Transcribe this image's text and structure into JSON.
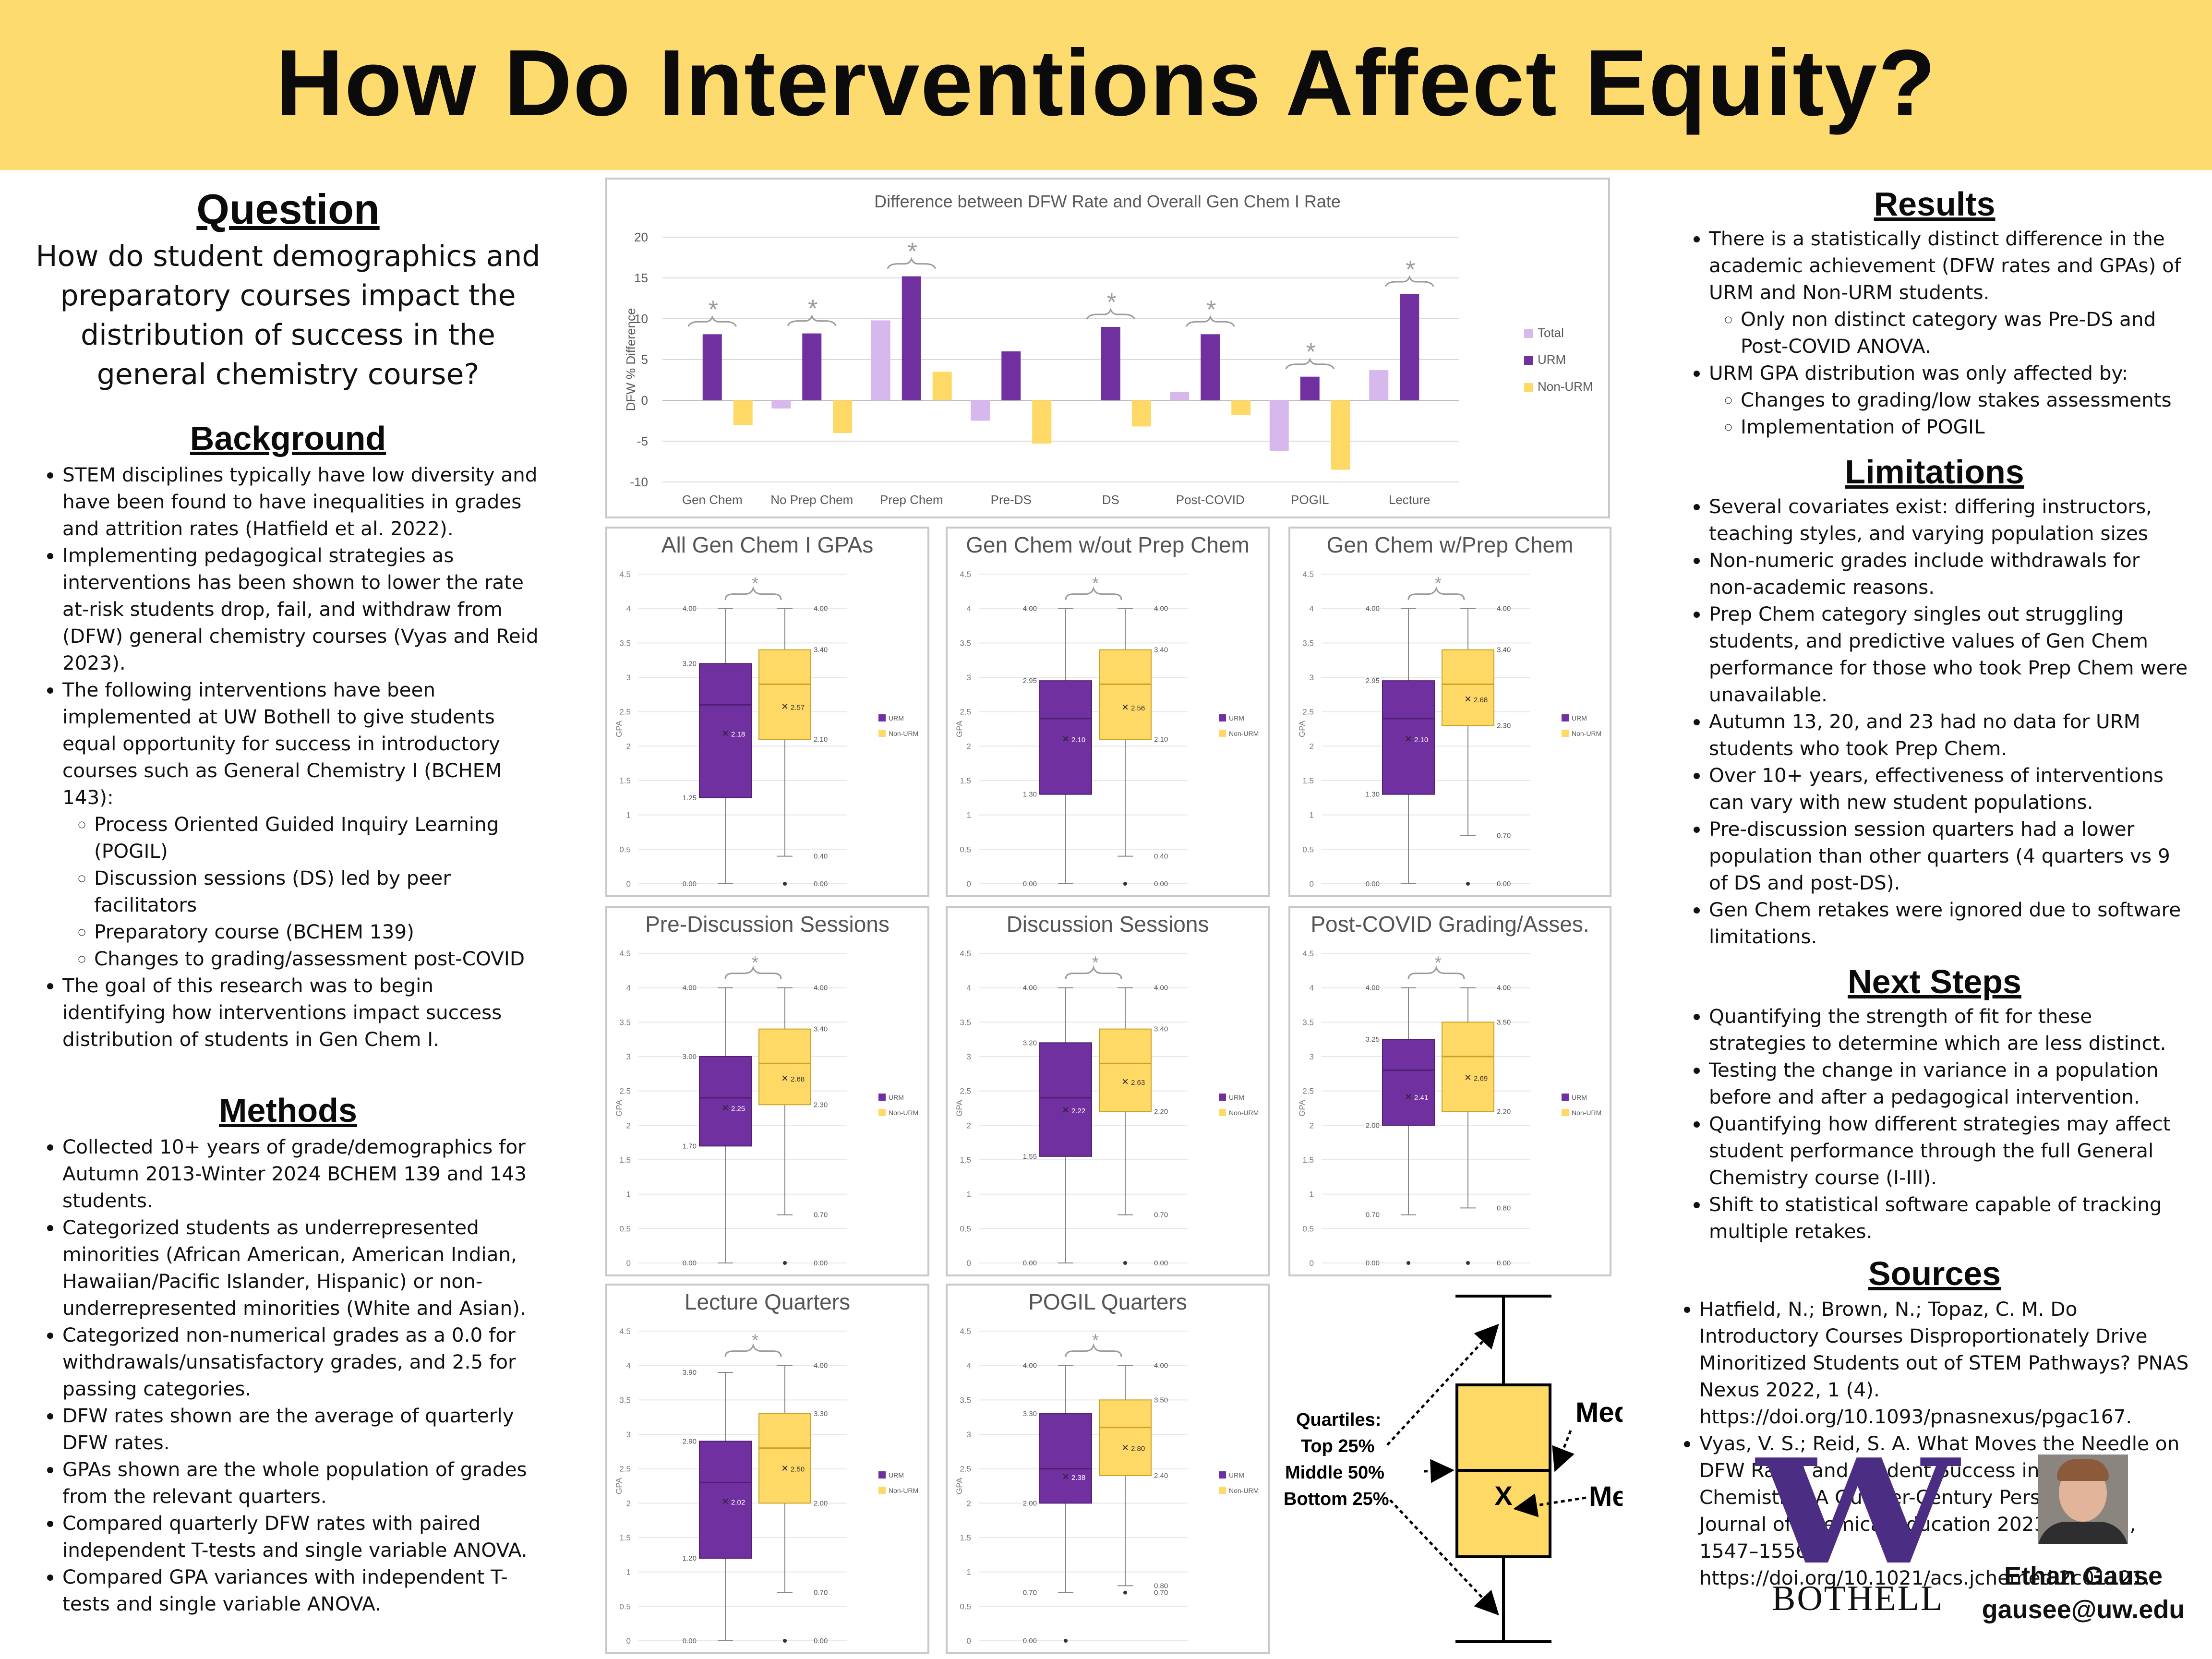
{
  "title": "How Do Interventions Affect Equity?",
  "question": {
    "heading": "Question",
    "text": "How do student demographics and preparatory courses impact the distribution of success in the general chemistry course?"
  },
  "background": {
    "heading": "Background",
    "items": [
      "STEM disciplines typically have low diversity and have been found to have inequalities in grades and attrition rates (Hatfield et al. 2022).",
      "Implementing pedagogical strategies as interventions has been shown to lower the rate at-risk students drop, fail, and withdraw from (DFW) general chemistry courses (Vyas and Reid 2023).",
      "The following interventions have been implemented at UW Bothell to give students equal opportunity for success in introductory courses such as General Chemistry I (BCHEM 143):",
      "The goal of this research was to begin identifying how interventions impact success distribution of students in Gen Chem I."
    ],
    "subitems": [
      "Process Oriented Guided Inquiry Learning (POGIL)",
      "Discussion sessions (DS) led by peer facilitators",
      "Preparatory course (BCHEM 139)",
      "Changes to grading/assessment post-COVID"
    ]
  },
  "methods": {
    "heading": "Methods",
    "items": [
      "Collected 10+ years of grade/demographics for Autumn 2013-Winter 2024 BCHEM 139 and 143 students.",
      "Categorized students as underrepresented minorities (African American, American Indian, Hawaiian/Pacific Islander, Hispanic) or non-underrepresented minorities (White and Asian).",
      "Categorized non-numerical grades as a 0.0 for withdrawals/unsatisfactory grades, and 2.5 for passing categories.",
      "DFW rates shown are the average of quarterly DFW rates.",
      "GPAs shown are the whole population of grades from the relevant quarters.",
      "Compared quarterly DFW rates with paired independent T-tests and single variable ANOVA.",
      "Compared GPA variances with independent T-tests and single variable ANOVA."
    ]
  },
  "results": {
    "heading": "Results",
    "item1": "There is a statistically distinct difference in the academic achievement (DFW rates and GPAs) of URM and Non-URM students.",
    "item1_sub": "Only non distinct category was Pre-DS and Post-COVID ANOVA.",
    "item2": "URM GPA distribution was only affected by:",
    "item2_sub": [
      "Changes to grading/low stakes assessments",
      "Implementation of POGIL"
    ]
  },
  "limitations": {
    "heading": "Limitations",
    "items": [
      "Several covariates exist: differing instructors, teaching styles, and varying population sizes",
      "Non-numeric grades include withdrawals for non-academic reasons.",
      "Prep Chem category singles out struggling students, and predictive values of Gen Chem performance for those who took Prep Chem were unavailable.",
      "Autumn 13, 20, and 23 had no data for URM students who took Prep Chem.",
      "Over 10+ years, effectiveness of interventions can vary with new student populations.",
      "Pre-discussion session quarters had a lower population than other quarters (4 quarters vs 9 of DS and post-DS).",
      "Gen Chem retakes were ignored due to software limitations."
    ]
  },
  "next_steps": {
    "heading": "Next Steps",
    "items": [
      "Quantifying the strength of fit for these strategies to determine which are less distinct.",
      "Testing the change in variance in a population before and after a pedagogical intervention.",
      "Quantifying how different strategies may affect student performance through the full General Chemistry course (I-III).",
      "Shift to statistical software capable of tracking multiple retakes."
    ]
  },
  "sources": {
    "heading": "Sources",
    "items": [
      "Hatfield, N.; Brown, N.; Topaz, C. M. Do Introductory Courses Disproportionately Drive Minoritized Students out of STEM Pathways? PNAS Nexus 2022, 1 (4). https://doi.org/10.1093/pnasnexus/pgac167.",
      "Vyas, V. S.; Reid, S. A. What Moves the Needle on DFW Rates and Student Success in General Chemistry? A Quarter-Century Perspective. Journal of Chemical Education 2023, 100 (4), 1547–1556. https://doi.org/10.1021/acs.jchemed.2c01121."
    ]
  },
  "legend_diagram": {
    "quartiles_title": "Quartiles:",
    "top": "Top 25%",
    "middle": "Middle 50%",
    "bottom": "Bottom 25%",
    "median": "Median",
    "mean": "Mean",
    "mean_symbol": "X"
  },
  "logo": {
    "letter": "W",
    "text": "BOTHELL"
  },
  "author": {
    "name": "Ethan Gause",
    "email": "gausee@uw.edu"
  },
  "colors": {
    "urm": "#7030a0",
    "non_urm": "#ffd966",
    "total": "#d7b8ec",
    "banner": "#fedb6e"
  },
  "chart_data": [
    {
      "type": "bar",
      "title": "Difference between DFW Rate and Overall Gen Chem I Rate",
      "ylabel": "DFW % Difference",
      "ylim": [
        -10,
        20
      ],
      "yticks": [
        -10,
        -5,
        0,
        5,
        10,
        15,
        20
      ],
      "grid": true,
      "legend_placement": "right",
      "categories": [
        "Gen Chem",
        "No Prep Chem",
        "Prep Chem",
        "Pre-DS",
        "DS",
        "Post-COVID",
        "POGIL",
        "Lecture"
      ],
      "series": [
        {
          "name": "Total",
          "values": [
            0,
            -1,
            9.8,
            -2.5,
            0,
            1,
            -6.2,
            3.7
          ]
        },
        {
          "name": "URM",
          "values": [
            8.1,
            8.2,
            15.2,
            6,
            9,
            8.1,
            2.9,
            13
          ]
        },
        {
          "name": "Non-URM",
          "values": [
            -3,
            -4,
            3.5,
            -5.3,
            -3.2,
            -1.8,
            -8.5,
            0
          ]
        }
      ],
      "significance_marker": "*",
      "significant_categories": [
        "Gen Chem",
        "No Prep Chem",
        "Prep Chem",
        "DS",
        "Post-COVID",
        "POGIL",
        "Lecture"
      ]
    },
    {
      "type": "boxplot",
      "title": "All Gen Chem I GPAs",
      "ylabel": "GPA",
      "ylim": [
        0,
        4.5
      ],
      "yticks": [
        "0",
        "0.5",
        "1",
        "1.5",
        "2",
        "2.5",
        "3",
        "3.5",
        "4",
        "4.5"
      ],
      "series": [
        {
          "name": "URM",
          "min": 0,
          "q1": 1.25,
          "median": 2.6,
          "q3": 3.2,
          "max": 4.0,
          "mean": 2.18,
          "labels": {
            "max": "4.00",
            "q3": "3.20",
            "median": "2.60",
            "q1": "1.25",
            "min": "0.00",
            "mean": "2.18"
          }
        },
        {
          "name": "Non-URM",
          "min": 0.4,
          "q1": 2.1,
          "median": 2.9,
          "q3": 3.4,
          "max": 4.0,
          "mean": 2.57,
          "outlier": 0,
          "labels": {
            "max": "4.00",
            "q3": "3.40",
            "median": "2.90",
            "q1": "2.10",
            "min": "0.40",
            "mean": "2.57",
            "outlier": "0.00"
          }
        }
      ]
    },
    {
      "type": "boxplot",
      "title": "Gen Chem w/out Prep Chem",
      "ylabel": "GPA",
      "ylim": [
        0,
        4.5
      ],
      "yticks": [
        "0",
        "0.5",
        "1",
        "1.5",
        "2",
        "2.5",
        "3",
        "3.5",
        "4",
        "4.5"
      ],
      "series": [
        {
          "name": "URM",
          "min": 0,
          "q1": 1.3,
          "median": 2.4,
          "q3": 2.95,
          "max": 4.0,
          "mean": 2.1,
          "labels": {
            "max": "4.00",
            "q3": "2.95",
            "median": "2.40",
            "q1": "1.30",
            "min": "0.00",
            "mean": "2.10"
          }
        },
        {
          "name": "Non-URM",
          "min": 0.4,
          "q1": 2.1,
          "median": 2.9,
          "q3": 3.4,
          "max": 4.0,
          "mean": 2.56,
          "outlier": 0,
          "labels": {
            "max": "4.00",
            "q3": "3.40",
            "median": "2.90",
            "q1": "2.10",
            "min": "0.40",
            "mean": "2.56",
            "outlier": "0.00"
          }
        }
      ]
    },
    {
      "type": "boxplot",
      "title": "Gen Chem w/Prep Chem",
      "ylabel": "GPA",
      "ylim": [
        0,
        4.5
      ],
      "yticks": [
        "0",
        "0.5",
        "1",
        "1.5",
        "2",
        "2.5",
        "3",
        "3.5",
        "4",
        "4.5"
      ],
      "series": [
        {
          "name": "URM",
          "min": 0,
          "q1": 1.3,
          "median": 2.4,
          "q3": 2.95,
          "max": 4.0,
          "mean": 2.1,
          "labels": {
            "max": "4.00",
            "q3": "2.95",
            "median": "2.40",
            "q1": "1.30",
            "min": "0.00",
            "mean": "2.10"
          }
        },
        {
          "name": "Non-URM",
          "min": 0.7,
          "q1": 2.3,
          "median": 2.9,
          "q3": 3.4,
          "max": 4.0,
          "mean": 2.68,
          "outlier": 0,
          "labels": {
            "max": "4.00",
            "q3": "3.40",
            "median": "2.90",
            "q1": "2.30",
            "min": "0.70",
            "mean": "2.68",
            "outlier": "0.00"
          }
        }
      ]
    },
    {
      "type": "boxplot",
      "title": "Pre-Discussion Sessions",
      "ylabel": "GPA",
      "ylim": [
        0,
        4.5
      ],
      "yticks": [
        "0",
        "0.5",
        "1",
        "1.5",
        "2",
        "2.5",
        "3",
        "3.5",
        "4",
        "4.5"
      ],
      "series": [
        {
          "name": "URM",
          "min": 0,
          "q1": 1.7,
          "median": 2.4,
          "q3": 3.0,
          "max": 4.0,
          "mean": 2.25,
          "labels": {
            "max": "4.00",
            "q3": "3.00",
            "median": "2.40",
            "q1": "1.70",
            "min": "0.00",
            "mean": "2.25"
          }
        },
        {
          "name": "Non-URM",
          "min": 0.7,
          "q1": 2.3,
          "median": 2.9,
          "q3": 3.4,
          "max": 4.0,
          "mean": 2.68,
          "outlier": 0,
          "labels": {
            "max": "4.00",
            "q3": "3.40",
            "median": "2.90",
            "q1": "2.30",
            "min": "0.70",
            "mean": "2.68",
            "outlier": "0.00"
          }
        }
      ]
    },
    {
      "type": "boxplot",
      "title": "Discussion Sessions",
      "ylabel": "GPA",
      "ylim": [
        0,
        4.5
      ],
      "yticks": [
        "0",
        "0.5",
        "1",
        "1.5",
        "2",
        "2.5",
        "3",
        "3.5",
        "4",
        "4.5"
      ],
      "series": [
        {
          "name": "URM",
          "min": 0,
          "q1": 1.55,
          "median": 2.4,
          "q3": 3.2,
          "max": 4.0,
          "mean": 2.22,
          "labels": {
            "max": "4.00",
            "q3": "3.20",
            "median": "2.40",
            "q1": "1.55",
            "min": "0.00",
            "mean": "2.22"
          }
        },
        {
          "name": "Non-URM",
          "min": 0.7,
          "q1": 2.2,
          "median": 2.9,
          "q3": 3.4,
          "max": 4.0,
          "mean": 2.63,
          "outlier": 0,
          "labels": {
            "max": "4.00",
            "q3": "3.40",
            "median": "2.90",
            "q1": "2.20",
            "min": "0.70",
            "mean": "2.63",
            "outlier": "0.00"
          }
        }
      ]
    },
    {
      "type": "boxplot",
      "title": "Post-COVID Grading/Asses.",
      "ylabel": "GPA",
      "ylim": [
        0,
        4.5
      ],
      "yticks": [
        "0",
        "0.5",
        "1",
        "1.5",
        "2",
        "2.5",
        "3",
        "3.5",
        "4",
        "4.5"
      ],
      "series": [
        {
          "name": "URM",
          "min": 0.7,
          "q1": 2.0,
          "median": 2.8,
          "q3": 3.25,
          "max": 4.0,
          "mean": 2.41,
          "outlier": 0,
          "labels": {
            "max": "4.00",
            "q3": "3.25",
            "median": "2.80",
            "q1": "2.00",
            "min": "0.70",
            "mean": "2.41",
            "outlier": "0.00"
          }
        },
        {
          "name": "Non-URM",
          "min": 0.8,
          "q1": 2.2,
          "median": 3.0,
          "q3": 3.5,
          "max": 4.0,
          "mean": 2.69,
          "outlier": 0,
          "labels": {
            "max": "4.00",
            "q3": "3.50",
            "median": "3.00",
            "q1": "2.20",
            "min": "0.80",
            "mean": "2.69",
            "outlier": "0.00"
          }
        }
      ]
    },
    {
      "type": "boxplot",
      "title": "Lecture Quarters",
      "ylabel": "GPA",
      "ylim": [
        0,
        4.5
      ],
      "yticks": [
        "0",
        "0.5",
        "1",
        "1.5",
        "2",
        "2.5",
        "3",
        "3.5",
        "4",
        "4.5"
      ],
      "series": [
        {
          "name": "URM",
          "min": 0,
          "q1": 1.2,
          "median": 2.3,
          "q3": 2.9,
          "max": 3.9,
          "mean": 2.02,
          "labels": {
            "max": "3.90",
            "q3": "2.90",
            "median": "2.30",
            "q1": "1.20",
            "min": "0.00",
            "mean": "2.02"
          }
        },
        {
          "name": "Non-URM",
          "min": 0.7,
          "q1": 2.0,
          "median": 2.8,
          "q3": 3.3,
          "max": 4.0,
          "mean": 2.5,
          "outlier": 0,
          "labels": {
            "max": "4.00",
            "q3": "3.30",
            "median": "2.80",
            "q1": "2.00",
            "min": "0.70",
            "mean": "2.50",
            "outlier": "0.00"
          }
        }
      ]
    },
    {
      "type": "boxplot",
      "title": "POGIL Quarters",
      "ylabel": "GPA",
      "ylim": [
        0,
        4.5
      ],
      "yticks": [
        "0",
        "0.5",
        "1",
        "1.5",
        "2",
        "2.5",
        "3",
        "3.5",
        "4",
        "4.5"
      ],
      "series": [
        {
          "name": "URM",
          "min": 0.7,
          "q1": 2.0,
          "median": 2.5,
          "q3": 3.3,
          "max": 4.0,
          "mean": 2.38,
          "outlier": 0,
          "labels": {
            "max": "4.00",
            "q3": "3.30",
            "median": "2.50",
            "q1": "2.00",
            "min": "0.70",
            "mean": "2.38",
            "outlier": "0.00"
          }
        },
        {
          "name": "Non-URM",
          "min": 0.8,
          "q1": 2.4,
          "median": 3.1,
          "q3": 3.5,
          "max": 4.0,
          "mean": 2.8,
          "outlier": 0.7,
          "labels": {
            "max": "4.00",
            "q3": "3.50",
            "median": "3.10",
            "q1": "2.40",
            "min": "0.80",
            "mean": "2.80",
            "outlier": "0.70"
          }
        }
      ]
    }
  ]
}
